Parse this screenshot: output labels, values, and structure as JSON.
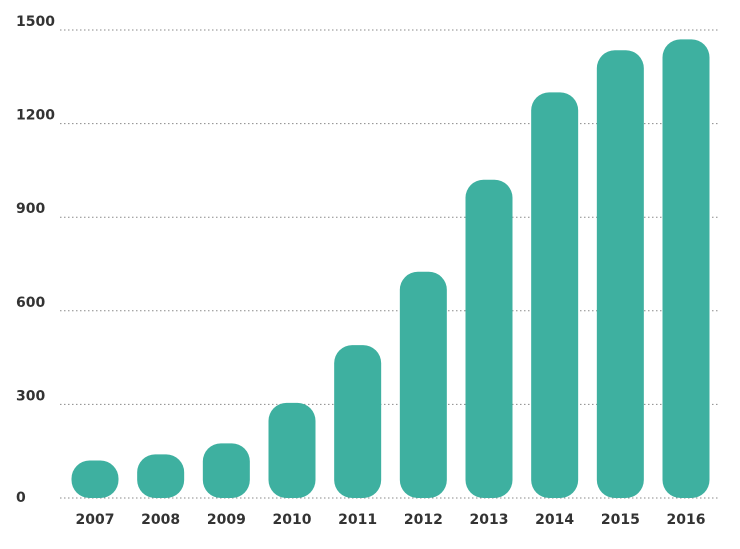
{
  "chart_data": {
    "type": "bar",
    "title": "",
    "xlabel": "",
    "ylabel": "",
    "categories": [
      "2007",
      "2008",
      "2009",
      "2010",
      "2011",
      "2012",
      "2013",
      "2014",
      "2015",
      "2016"
    ],
    "values": [
      120,
      140,
      175,
      305,
      490,
      725,
      1020,
      1300,
      1435,
      1470
    ],
    "ylim": [
      0,
      1500
    ],
    "yticks": [
      "0",
      "300",
      "600",
      "900",
      "1200",
      "1500"
    ],
    "grid": true,
    "grid_style": "dotted",
    "legend": "none",
    "colors": {
      "bar": "#3eb0a0",
      "grid": "#8a8a8a",
      "tick_text": "#333333"
    }
  }
}
